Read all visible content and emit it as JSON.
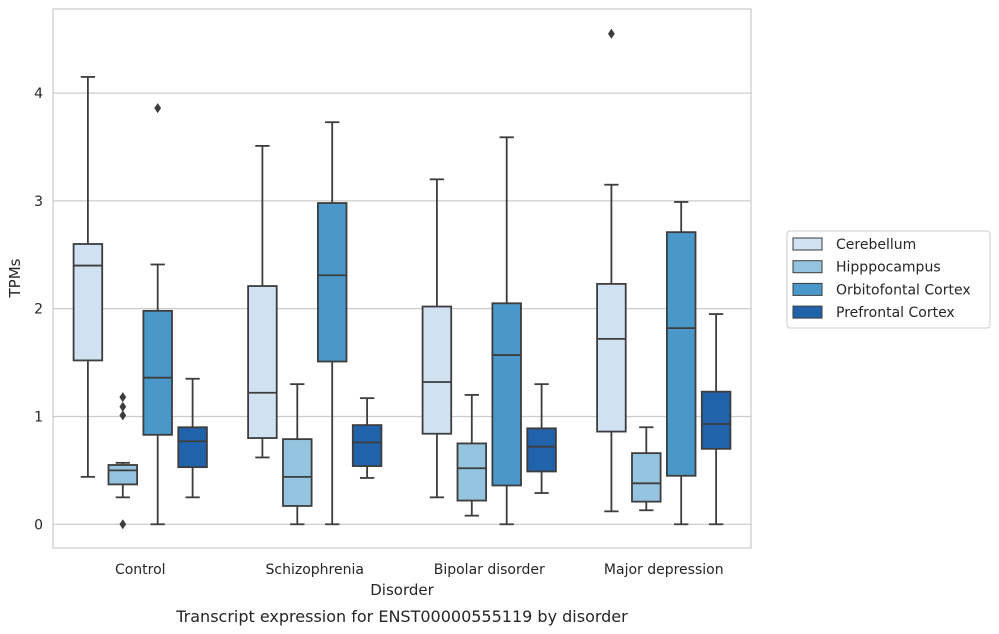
{
  "chart_data": {
    "type": "box",
    "title": "",
    "caption": "Transcript expression for ENST00000555119 by disorder",
    "xlabel": "Disorder",
    "ylabel": "TPMs",
    "ylim": [
      -0.22,
      4.78
    ],
    "yticks": [
      0,
      1,
      2,
      3,
      4
    ],
    "grid": true,
    "legend_position": "right",
    "categories": [
      "Control",
      "Schizophrenia",
      "Bipolar disorder",
      "Major depression"
    ],
    "series": [
      {
        "name": "Cerebellum",
        "color": "#d0e1f2",
        "boxes": [
          {
            "whislo": 0.44,
            "q1": 1.52,
            "med": 2.4,
            "q3": 2.6,
            "whishi": 4.15,
            "fliers": []
          },
          {
            "whislo": 0.62,
            "q1": 0.8,
            "med": 1.22,
            "q3": 2.21,
            "whishi": 3.51,
            "fliers": []
          },
          {
            "whislo": 0.25,
            "q1": 0.84,
            "med": 1.32,
            "q3": 2.02,
            "whishi": 3.2,
            "fliers": []
          },
          {
            "whislo": 0.12,
            "q1": 0.86,
            "med": 1.72,
            "q3": 2.23,
            "whishi": 3.15,
            "fliers": [
              4.55
            ]
          }
        ]
      },
      {
        "name": "Hipppocampus",
        "color": "#94c4df",
        "boxes": [
          {
            "whislo": 0.25,
            "q1": 0.37,
            "med": 0.5,
            "q3": 0.55,
            "whishi": 0.57,
            "fliers": [
              1.18,
              1.09,
              1.01,
              0.0
            ]
          },
          {
            "whislo": 0.0,
            "q1": 0.17,
            "med": 0.44,
            "q3": 0.79,
            "whishi": 1.3,
            "fliers": []
          },
          {
            "whislo": 0.08,
            "q1": 0.22,
            "med": 0.52,
            "q3": 0.75,
            "whishi": 1.2,
            "fliers": []
          },
          {
            "whislo": 0.13,
            "q1": 0.21,
            "med": 0.38,
            "q3": 0.66,
            "whishi": 0.9,
            "fliers": []
          }
        ]
      },
      {
        "name": "Orbitofontal Cortex",
        "color": "#4a98c9",
        "boxes": [
          {
            "whislo": 0.0,
            "q1": 0.83,
            "med": 1.36,
            "q3": 1.98,
            "whishi": 2.41,
            "fliers": [
              3.86
            ]
          },
          {
            "whislo": 0.0,
            "q1": 1.51,
            "med": 2.31,
            "q3": 2.98,
            "whishi": 3.73,
            "fliers": []
          },
          {
            "whislo": 0.0,
            "q1": 0.36,
            "med": 1.57,
            "q3": 2.05,
            "whishi": 3.59,
            "fliers": []
          },
          {
            "whislo": 0.0,
            "q1": 0.45,
            "med": 1.82,
            "q3": 2.71,
            "whishi": 2.99,
            "fliers": []
          }
        ]
      },
      {
        "name": "Prefrontal Cortex",
        "color": "#2163aa",
        "boxes": [
          {
            "whislo": 0.25,
            "q1": 0.53,
            "med": 0.77,
            "q3": 0.9,
            "whishi": 1.35,
            "fliers": []
          },
          {
            "whislo": 0.43,
            "q1": 0.54,
            "med": 0.76,
            "q3": 0.92,
            "whishi": 1.17,
            "fliers": []
          },
          {
            "whislo": 0.29,
            "q1": 0.49,
            "med": 0.72,
            "q3": 0.89,
            "whishi": 1.3,
            "fliers": []
          },
          {
            "whislo": 0.0,
            "q1": 0.7,
            "med": 0.93,
            "q3": 1.23,
            "whishi": 1.95,
            "fliers": []
          }
        ]
      }
    ]
  }
}
